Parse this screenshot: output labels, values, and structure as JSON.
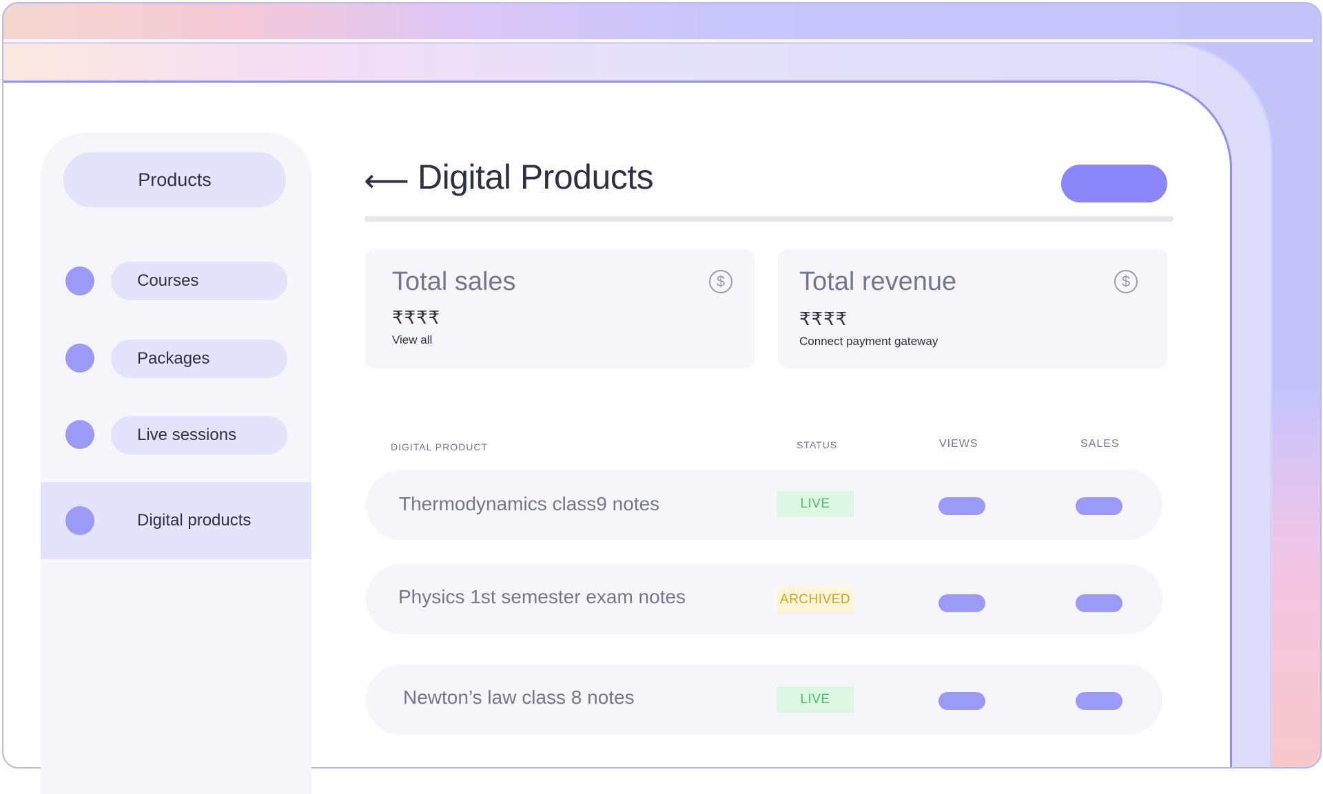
{
  "sidebar": {
    "title": "Products",
    "items": [
      {
        "label": "Courses",
        "active": false
      },
      {
        "label": "Packages",
        "active": false
      },
      {
        "label": "Live sessions",
        "active": false
      },
      {
        "label": "Digital products",
        "active": true
      }
    ]
  },
  "header": {
    "back_icon": "arrow-left-icon",
    "title": "Digital Products"
  },
  "cards": [
    {
      "title": "Total sales",
      "value": "₹₹₹₹",
      "link": "View all",
      "icon": "dollar-circle-icon"
    },
    {
      "title": "Total revenue",
      "value": "₹₹₹₹",
      "link": "Connect payment gateway",
      "icon": "dollar-circle-icon"
    }
  ],
  "table": {
    "headers": {
      "product": "DIGITAL PRODUCT",
      "status": "STATUS",
      "views": "VIEWS",
      "sales": "SALES"
    },
    "rows": [
      {
        "name": "Thermodynamics class9 notes",
        "status": "LIVE"
      },
      {
        "name": "Physics 1st semester exam notes",
        "status": "ARCHIVED"
      },
      {
        "name": "Newton’s law class 8 notes",
        "status": "LIVE"
      }
    ]
  },
  "colors": {
    "accent": "#8886f8",
    "dot": "#9b9bf7",
    "live_bg": "#dcf8e3",
    "live_text": "#53b76d",
    "archived_bg": "#fcf5d7",
    "archived_text": "#d3a220"
  }
}
